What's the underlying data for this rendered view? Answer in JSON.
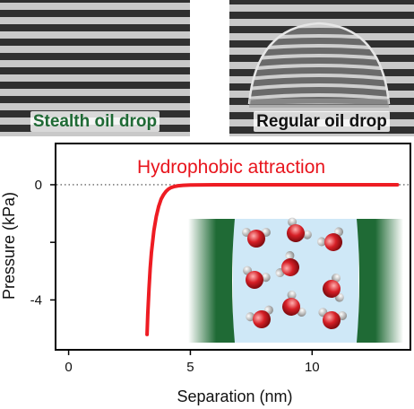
{
  "photos": [
    {
      "label": "Stealth oil drop",
      "label_color": "#1f6a35"
    },
    {
      "label": "Regular oil drop",
      "label_color": "#111111"
    }
  ],
  "chart_data": {
    "type": "line",
    "title": "Hydrophobic attraction",
    "title_color": "#e8141c",
    "xlabel": "Separation (nm)",
    "ylabel": "Pressure (kPa)",
    "xlim": [
      -0.5,
      14.0
    ],
    "ylim": [
      -5.7,
      1.4
    ],
    "xticks": [
      0,
      5,
      10
    ],
    "yticks": [
      0,
      -2,
      -4
    ],
    "ytick_labels": [
      "0",
      "",
      "-4"
    ],
    "reference_line": {
      "y": 0,
      "style": "dotted"
    },
    "series": [
      {
        "color": "#ee1c23",
        "x": [
          3.22,
          3.25,
          3.3,
          3.35,
          3.4,
          3.5,
          3.6,
          3.7,
          3.8,
          3.9,
          4.0,
          4.1,
          4.2,
          4.35,
          4.5,
          4.7,
          5.0,
          5.5,
          6.0,
          7.0,
          8.0,
          10.0,
          12.0,
          13.5
        ],
        "y": [
          -5.2,
          -4.5,
          -3.6,
          -2.9,
          -2.35,
          -1.6,
          -1.1,
          -0.75,
          -0.5,
          -0.34,
          -0.23,
          -0.15,
          -0.1,
          -0.06,
          -0.035,
          -0.02,
          -0.01,
          -0.004,
          -0.002,
          0,
          0,
          0,
          0,
          0
        ]
      }
    ],
    "inset": {
      "description_icon": "water-molecules-between-hydrophobic-walls",
      "wall_color": "#1f6a35",
      "water_bg": "#cfe8f7",
      "oxygen_color": "#d61f26",
      "hydrogen_color": "#e0e0e0"
    }
  }
}
